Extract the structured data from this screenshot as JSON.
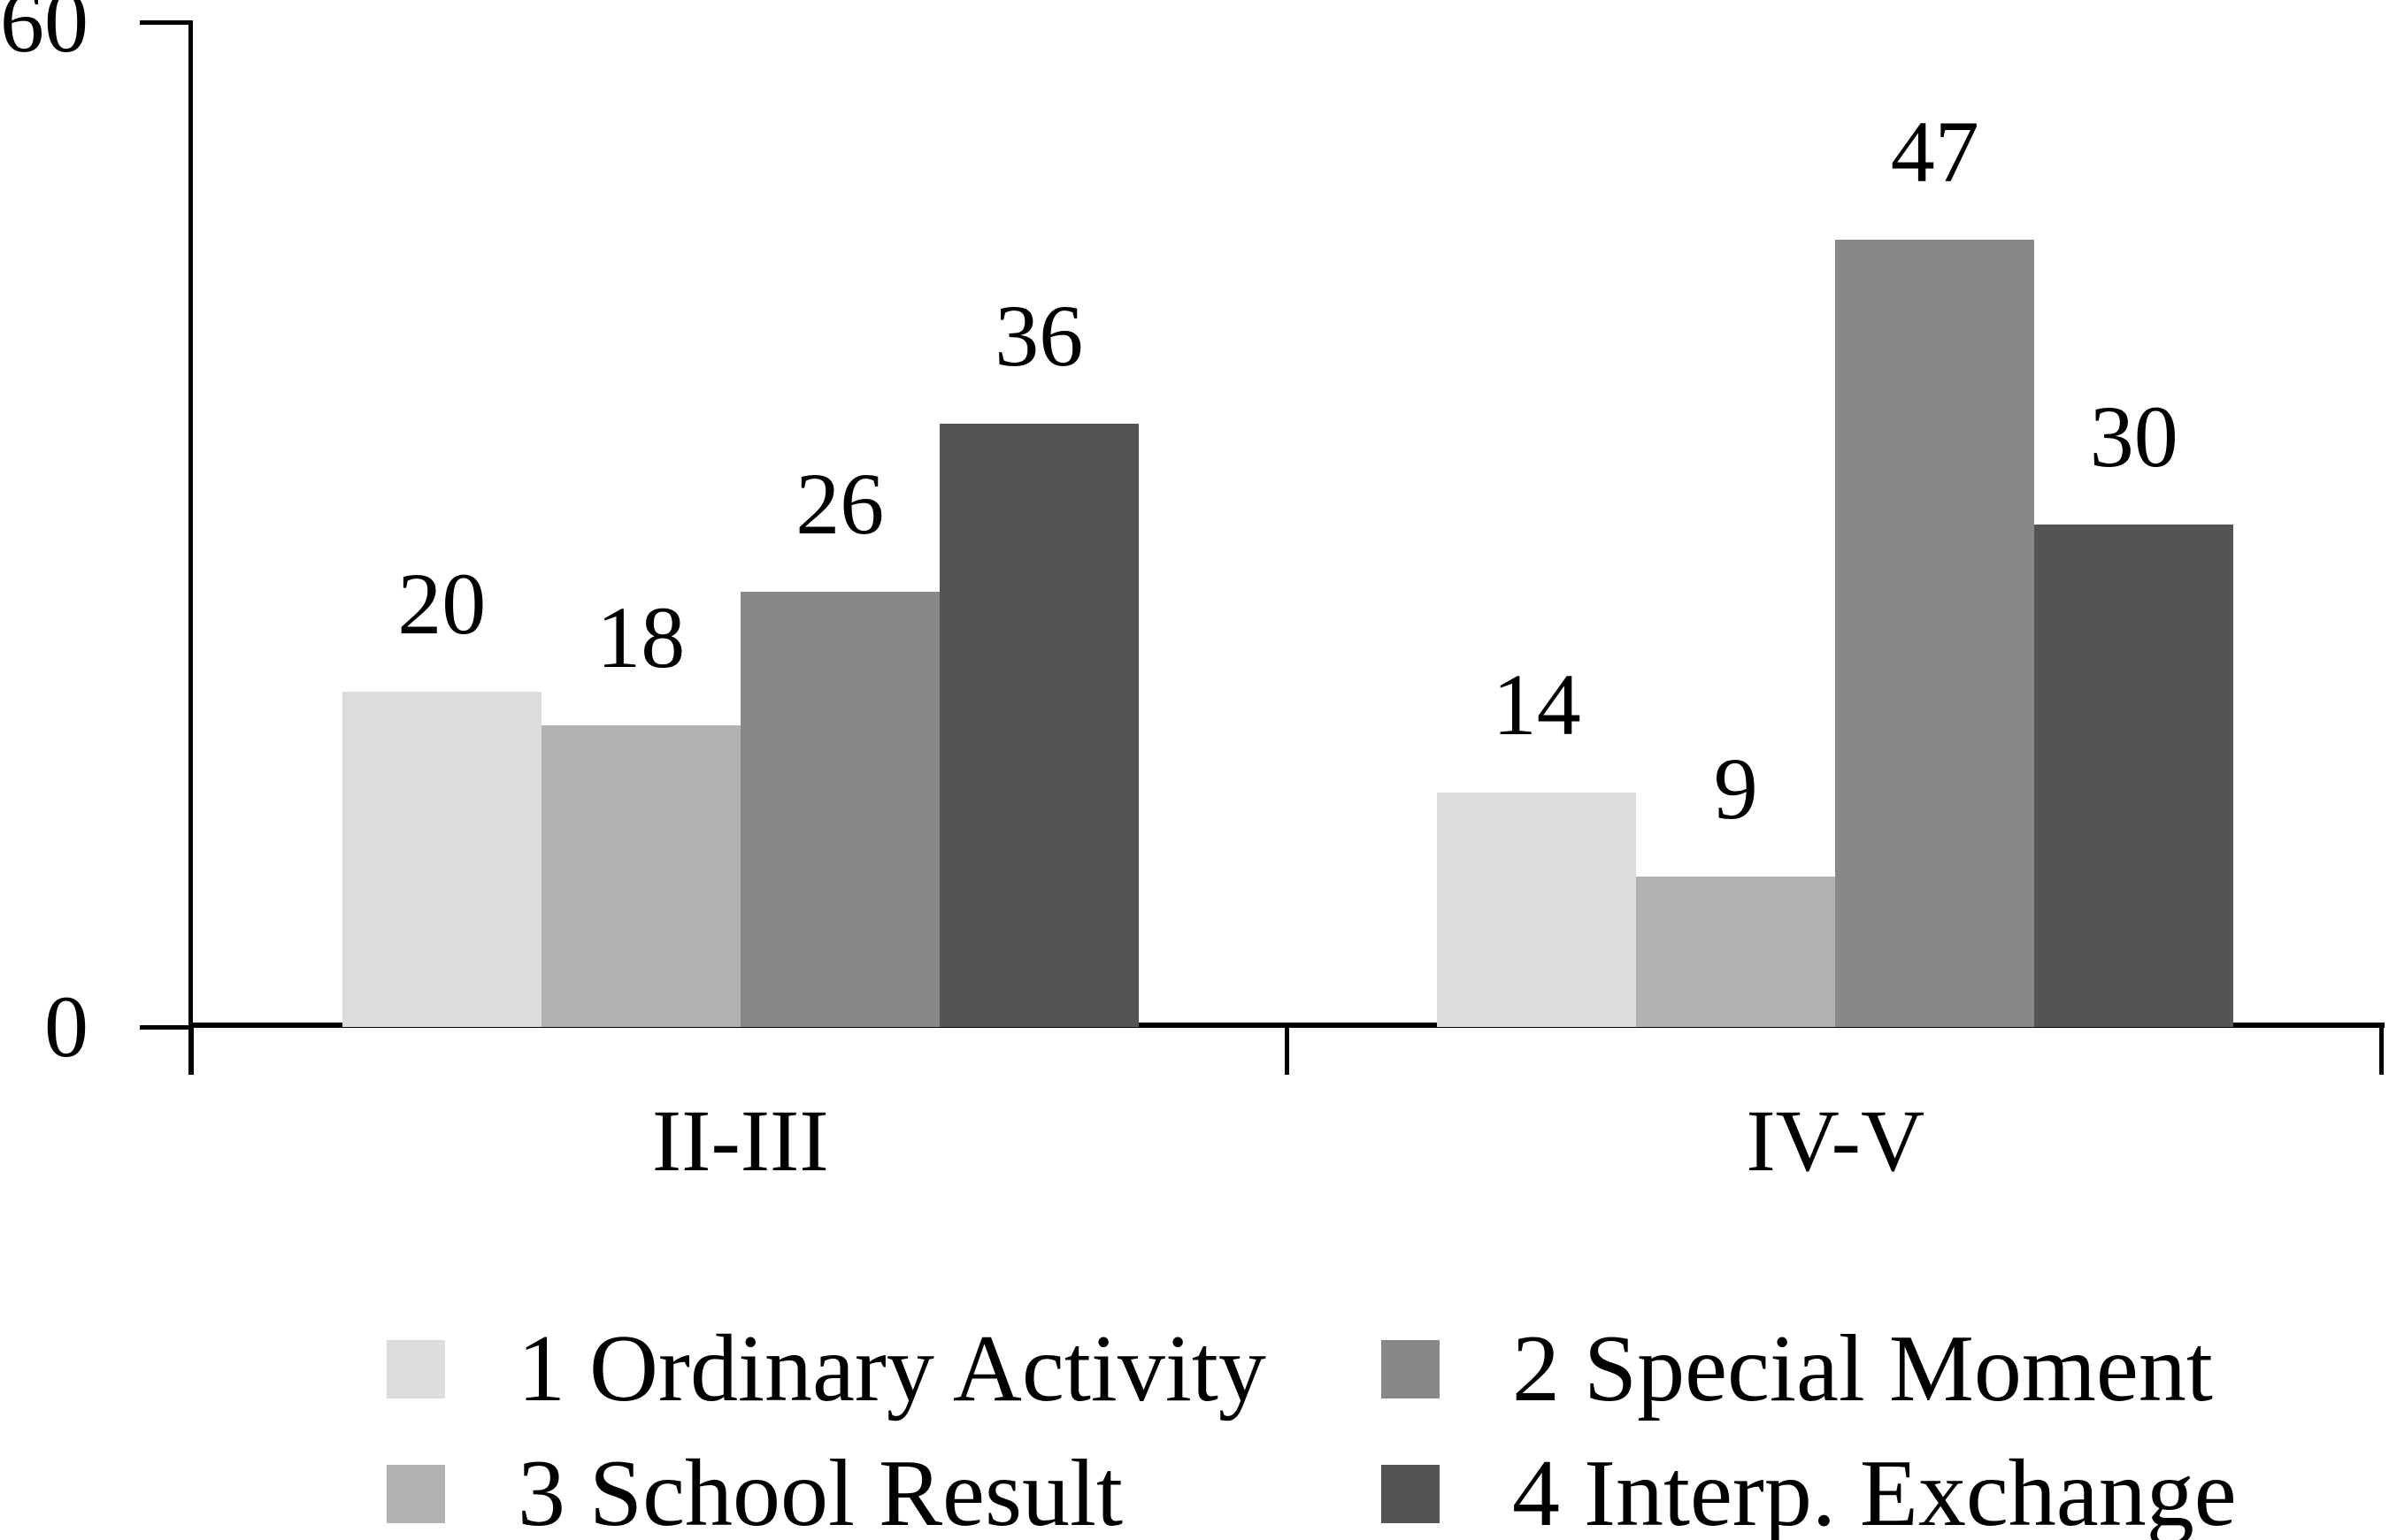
{
  "chart_data": {
    "type": "bar",
    "title": "",
    "categories": [
      "II-III",
      "IV-V"
    ],
    "series": [
      {
        "name": "1 Ordinary Activity",
        "color": "#dcdcdc",
        "values": [
          20,
          14
        ]
      },
      {
        "name": "3 School Result",
        "color": "#b2b2b2",
        "values": [
          18,
          9
        ]
      },
      {
        "name": "2 Special Moment",
        "color": "#888888",
        "values": [
          26,
          47
        ]
      },
      {
        "name": "4 Interp. Exchange",
        "color": "#545454",
        "values": [
          36,
          30
        ]
      }
    ],
    "bar_value_labels": [
      {
        "category": "II-III",
        "values": [
          "20",
          "18",
          "26",
          "36"
        ]
      },
      {
        "category": "IV-V",
        "values": [
          "14",
          "9",
          "47",
          "30"
        ]
      }
    ],
    "ylim": [
      0,
      60
    ],
    "yticks": [
      {
        "value": 60,
        "label": "60"
      },
      {
        "value": 0,
        "label": "0"
      }
    ],
    "grid": false,
    "legend_position": "bottom",
    "legend_order": [
      "1 Ordinary Activity",
      "2 Special Moment",
      "3 School Result",
      "4 Interp. Exchange"
    ],
    "axis_color": "#000000",
    "text_color": "#000000",
    "background": "#ffffff"
  }
}
